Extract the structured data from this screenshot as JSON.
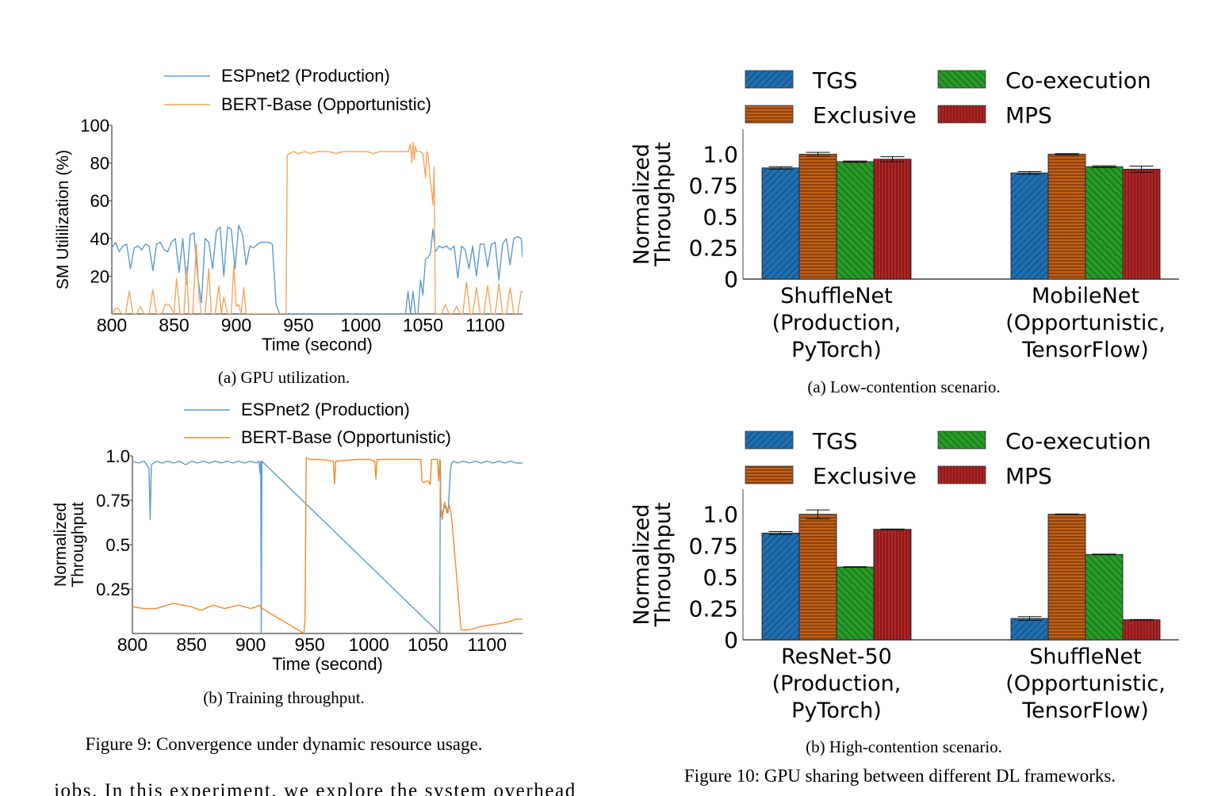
{
  "figure9": {
    "caption": "Figure 9: Convergence under dynamic resource usage.",
    "panels": [
      {
        "subcaption": "(a) GPU utilization.",
        "legend": [
          "ESPnet2 (Production)",
          "BERT-Base (Opportunistic)"
        ]
      },
      {
        "subcaption": "(b) Training throughput.",
        "legend": [
          "ESPnet2 (Production)",
          "BERT-Base (Opportunistic)"
        ]
      }
    ]
  },
  "figure10": {
    "caption": "Figure 10: GPU sharing between different DL frameworks.",
    "panels": [
      {
        "subcaption": "(a) Low-contention scenario."
      },
      {
        "subcaption": "(b) High-contention scenario."
      }
    ]
  },
  "body_text": "jobs. In this experiment, we explore the system overhead",
  "colors": {
    "espnet": "#5b9bd0",
    "bert_a": "#f5a55f",
    "bert_b": "#f7892a",
    "tgs": "#1f6fb0",
    "exclusive": "#b3580e",
    "coexec": "#2a9a2a",
    "mps": "#8c1a1a"
  },
  "chart_data": [
    {
      "id": "fig9a",
      "type": "line",
      "title": "(a) GPU utilization.",
      "xlabel": "Time (second)",
      "ylabel": "SM Utililization (%)",
      "xlim": [
        800,
        1130
      ],
      "ylim": [
        0,
        100
      ],
      "xticks": [
        800,
        850,
        900,
        950,
        1000,
        1050,
        1100
      ],
      "yticks": [
        20,
        40,
        60,
        80,
        100
      ],
      "legend_position": "top",
      "series": [
        {
          "name": "ESPnet2 (Production)",
          "x": [
            800,
            803,
            806,
            809,
            812,
            815,
            818,
            821,
            824,
            827,
            830,
            833,
            836,
            839,
            842,
            845,
            848,
            851,
            854,
            857,
            860,
            863,
            866,
            869,
            872,
            875,
            878,
            881,
            884,
            887,
            890,
            893,
            896,
            899,
            902,
            905,
            908,
            911,
            914,
            917,
            920,
            923,
            926,
            929,
            932,
            935,
            938,
            1036,
            1038,
            1040,
            1042,
            1044,
            1046,
            1048,
            1050,
            1052,
            1054,
            1056,
            1058,
            1060,
            1063,
            1066,
            1069,
            1072,
            1075,
            1078,
            1081,
            1084,
            1087,
            1090,
            1093,
            1096,
            1099,
            1102,
            1105,
            1108,
            1111,
            1114,
            1117,
            1120,
            1123,
            1126,
            1129,
            1130
          ],
          "y": [
            35,
            38,
            33,
            36,
            37,
            24,
            35,
            36,
            34,
            37,
            36,
            23,
            37,
            38,
            34,
            33,
            38,
            40,
            22,
            40,
            16,
            42,
            43,
            20,
            6,
            40,
            38,
            24,
            44,
            46,
            20,
            46,
            45,
            24,
            47,
            42,
            26,
            36,
            35,
            37,
            38,
            38,
            38,
            37,
            5,
            0,
            0,
            0,
            12,
            0,
            12,
            0,
            0,
            18,
            10,
            29,
            30,
            32,
            45,
            33,
            36,
            35,
            36,
            34,
            36,
            19,
            36,
            34,
            24,
            36,
            20,
            37,
            37,
            25,
            37,
            38,
            18,
            37,
            40,
            26,
            40,
            41,
            40,
            30
          ]
        },
        {
          "name": "BERT-Base (Opportunistic)",
          "x": [
            800,
            803,
            805,
            808,
            811,
            814,
            817,
            820,
            823,
            826,
            830,
            833,
            836,
            840,
            843,
            846,
            850,
            852,
            855,
            858,
            860,
            862,
            865,
            868,
            870,
            872,
            875,
            878,
            880,
            883,
            886,
            888,
            890,
            893,
            896,
            898,
            900,
            902,
            904,
            906,
            908,
            910,
            915,
            925,
            935,
            938,
            940,
            941,
            943,
            946,
            950,
            955,
            960,
            965,
            970,
            975,
            980,
            985,
            990,
            995,
            1000,
            1005,
            1010,
            1015,
            1020,
            1025,
            1030,
            1035,
            1038,
            1040,
            1041,
            1042,
            1043,
            1044,
            1045,
            1046,
            1048,
            1050,
            1052,
            1053,
            1054,
            1056,
            1057,
            1058,
            1059,
            1060,
            1062,
            1065,
            1068,
            1071,
            1074,
            1077,
            1080,
            1082,
            1085,
            1088,
            1090,
            1093,
            1096,
            1099,
            1102,
            1105,
            1108,
            1111,
            1114,
            1117,
            1120,
            1123,
            1126,
            1129,
            1130
          ],
          "y": [
            0,
            3,
            3,
            0,
            0,
            12,
            0,
            0,
            4,
            0,
            0,
            13,
            0,
            0,
            5,
            5,
            0,
            19,
            0,
            0,
            25,
            0,
            0,
            37,
            10,
            0,
            0,
            24,
            0,
            0,
            15,
            0,
            9,
            0,
            0,
            26,
            4,
            5,
            0,
            14,
            0,
            0,
            0,
            0,
            0,
            0,
            0,
            84,
            85,
            86,
            85,
            86,
            85,
            86,
            86,
            86,
            85,
            86,
            86,
            86,
            86,
            86,
            85,
            86,
            86,
            86,
            86,
            86,
            86,
            90,
            80,
            91,
            82,
            89,
            86,
            86,
            86,
            85,
            72,
            86,
            85,
            70,
            65,
            58,
            78,
            0,
            0,
            0,
            5,
            0,
            0,
            4,
            0,
            0,
            17,
            0,
            0,
            14,
            0,
            0,
            15,
            0,
            0,
            16,
            0,
            0,
            14,
            0,
            0,
            12,
            12
          ]
        }
      ]
    },
    {
      "id": "fig9b",
      "type": "line",
      "title": "(b) Training throughput.",
      "xlabel": "Time (second)",
      "ylabel": "Normalized Throughput",
      "xlim": [
        800,
        1130
      ],
      "ylim": [
        0,
        1.0
      ],
      "xticks": [
        800,
        850,
        900,
        950,
        1000,
        1050,
        1100
      ],
      "yticks": [
        0.25,
        0.5,
        0.75,
        1.0
      ],
      "ytick_labels": [
        "0.25",
        "0.5",
        "0.75",
        "1.0"
      ],
      "legend_position": "top",
      "series": [
        {
          "name": "ESPnet2 (Production)",
          "x": [
            800,
            805,
            810,
            814,
            815,
            816,
            820,
            825,
            830,
            835,
            840,
            845,
            850,
            855,
            860,
            865,
            870,
            875,
            880,
            885,
            890,
            895,
            900,
            905,
            907,
            908,
            908.5,
            909,
            909.5,
            1060,
            1060.5,
            1061,
            1063,
            1065,
            1067,
            1069,
            1070,
            1072,
            1075,
            1080,
            1085,
            1090,
            1095,
            1100,
            1105,
            1110,
            1115,
            1120,
            1125,
            1130
          ],
          "y": [
            0.97,
            0.96,
            0.97,
            0.93,
            0.64,
            0.95,
            0.97,
            0.96,
            0.97,
            0.96,
            0.97,
            0.95,
            0.97,
            0.96,
            0.97,
            0.96,
            0.97,
            0.96,
            0.97,
            0.96,
            0.97,
            0.96,
            0.97,
            0.96,
            0.97,
            0.9,
            0.97,
            0.0,
            0.97,
            0.0,
            0.97,
            0.66,
            0.7,
            0.72,
            0.68,
            0.92,
            0.96,
            0.97,
            0.96,
            0.97,
            0.96,
            0.97,
            0.96,
            0.97,
            0.96,
            0.97,
            0.96,
            0.97,
            0.96,
            0.96
          ]
        },
        {
          "name": "BERT-Base (Opportunistic)",
          "x": [
            800,
            810,
            820,
            835,
            850,
            858,
            868,
            878,
            890,
            900,
            905,
            907,
            910,
            945,
            946,
            947,
            950,
            960,
            970,
            971,
            972,
            990,
            1000,
            1005,
            1006,
            1007,
            1020,
            1040,
            1044,
            1045,
            1046,
            1050,
            1052,
            1053,
            1058,
            1059,
            1060,
            1061,
            1062,
            1064,
            1066,
            1068,
            1070,
            1078,
            1085,
            1095,
            1105,
            1115,
            1125,
            1130
          ],
          "y": [
            0.15,
            0.14,
            0.14,
            0.17,
            0.15,
            0.13,
            0.16,
            0.14,
            0.16,
            0.14,
            0.15,
            0.16,
            0.14,
            0.0,
            0.08,
            0.99,
            0.98,
            0.98,
            0.97,
            0.84,
            0.97,
            0.98,
            0.98,
            0.97,
            0.87,
            0.98,
            0.98,
            0.98,
            0.98,
            0.86,
            0.85,
            0.86,
            0.84,
            0.98,
            0.98,
            0.86,
            0.98,
            0.7,
            0.64,
            0.74,
            0.68,
            0.72,
            0.66,
            0.02,
            0.02,
            0.04,
            0.05,
            0.06,
            0.08,
            0.08
          ]
        }
      ]
    },
    {
      "id": "fig10a",
      "type": "bar",
      "title": "(a) Low-contention scenario.",
      "ylabel": "Normalized Throughput",
      "ylim": [
        0,
        1.2
      ],
      "yticks": [
        0,
        0.25,
        0.5,
        0.75,
        1.0
      ],
      "ytick_labels": [
        "0",
        "0.25",
        "0.5",
        "0.75",
        "1.0"
      ],
      "legend_position": "top",
      "categories": [
        [
          "ShuffleNet",
          "(Production,",
          "PyTorch)"
        ],
        [
          "MobileNet",
          "(Opportunistic,",
          "TensorFlow)"
        ]
      ],
      "series": [
        {
          "name": "TGS",
          "values": [
            0.89,
            0.85
          ],
          "errors": [
            0.01,
            0.01
          ]
        },
        {
          "name": "Exclusive",
          "values": [
            1.0,
            1.0
          ],
          "errors": [
            0.015,
            0.005
          ]
        },
        {
          "name": "Co-execution",
          "values": [
            0.94,
            0.9
          ],
          "errors": [
            0.005,
            0.007
          ]
        },
        {
          "name": "MPS",
          "values": [
            0.96,
            0.88
          ],
          "errors": [
            0.02,
            0.025
          ]
        }
      ]
    },
    {
      "id": "fig10b",
      "type": "bar",
      "title": "(b) High-contention scenario.",
      "ylabel": "Normalized Throughput",
      "ylim": [
        0,
        1.2
      ],
      "yticks": [
        0,
        0.25,
        0.5,
        0.75,
        1.0
      ],
      "ytick_labels": [
        "0",
        "0.25",
        "0.5",
        "0.75",
        "1.0"
      ],
      "legend_position": "top",
      "categories": [
        [
          "ResNet-50",
          "(Production,",
          "PyTorch)"
        ],
        [
          "ShuffleNet",
          "(Opportunistic,",
          "TensorFlow)"
        ]
      ],
      "series": [
        {
          "name": "TGS",
          "values": [
            0.85,
            0.17
          ],
          "errors": [
            0.012,
            0.015
          ]
        },
        {
          "name": "Exclusive",
          "values": [
            1.0,
            1.0
          ],
          "errors": [
            0.035,
            0.003
          ]
        },
        {
          "name": "Co-execution",
          "values": [
            0.58,
            0.68
          ],
          "errors": [
            0.003,
            0.003
          ]
        },
        {
          "name": "MPS",
          "values": [
            0.88,
            0.16
          ],
          "errors": [
            0.003,
            0.002
          ]
        }
      ]
    }
  ]
}
